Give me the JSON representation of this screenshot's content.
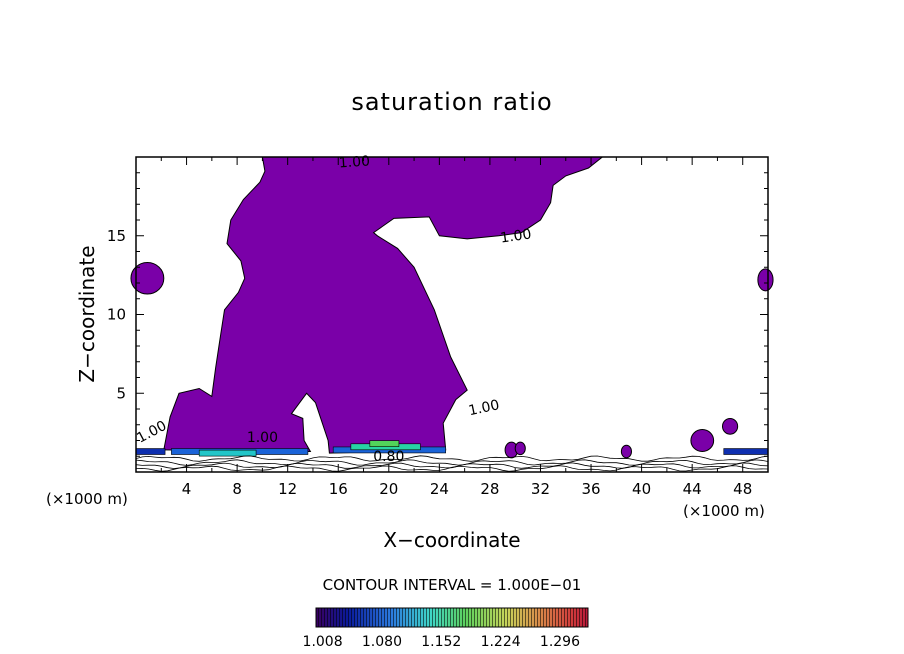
{
  "chart_data": {
    "type": "contour",
    "title": "saturation ratio",
    "xlabel": "X−coordinate",
    "ylabel": "Z−coordinate",
    "x_unit": "(×1000 m)",
    "xlim": [
      0,
      50
    ],
    "ylim": [
      0,
      20
    ],
    "x_ticks": [
      4,
      8,
      12,
      16,
      20,
      24,
      28,
      32,
      36,
      40,
      44,
      48
    ],
    "y_ticks": [
      5,
      10,
      15
    ],
    "fill_color": "#7a00a8",
    "contour_labels": [
      "1.00",
      "1.00",
      "1.00",
      "1.00",
      "1.00",
      "0.80"
    ],
    "contour_interval_text": "CONTOUR INTERVAL = 1.000E−01",
    "colorbar": {
      "ticks": [
        "1.008",
        "1.080",
        "1.152",
        "1.224",
        "1.296"
      ],
      "range": [
        1.0,
        1.33
      ]
    },
    "saturated_region_outline": [
      [
        10.0,
        20.0
      ],
      [
        10.2,
        19.1
      ],
      [
        9.8,
        18.4
      ],
      [
        8.5,
        17.3
      ],
      [
        7.5,
        16.0
      ],
      [
        7.2,
        14.5
      ],
      [
        8.3,
        13.4
      ],
      [
        8.6,
        12.3
      ],
      [
        8.1,
        11.4
      ],
      [
        7.0,
        10.3
      ],
      [
        6.6,
        8.2
      ],
      [
        6.3,
        6.6
      ],
      [
        6.0,
        4.8
      ],
      [
        5.0,
        5.3
      ],
      [
        3.4,
        5.0
      ],
      [
        2.7,
        3.5
      ],
      [
        2.2,
        1.4
      ],
      [
        13.8,
        1.3
      ],
      [
        13.3,
        2.0
      ],
      [
        13.2,
        3.4
      ],
      [
        12.3,
        3.7
      ],
      [
        13.5,
        5.0
      ],
      [
        14.2,
        4.4
      ],
      [
        15.2,
        2.0
      ],
      [
        15.3,
        1.2
      ],
      [
        24.5,
        1.4
      ],
      [
        24.3,
        3.1
      ],
      [
        25.3,
        4.6
      ],
      [
        26.2,
        5.2
      ],
      [
        24.9,
        7.3
      ],
      [
        23.6,
        10.3
      ],
      [
        22.0,
        13.0
      ],
      [
        20.7,
        14.2
      ],
      [
        19.1,
        15.0
      ],
      [
        18.8,
        15.2
      ],
      [
        20.4,
        16.1
      ],
      [
        23.2,
        16.2
      ],
      [
        24.0,
        15.0
      ],
      [
        26.2,
        14.8
      ],
      [
        28.7,
        15.0
      ],
      [
        30.5,
        15.2
      ],
      [
        32.0,
        16.0
      ],
      [
        32.8,
        17.1
      ],
      [
        33.0,
        18.2
      ],
      [
        34.0,
        18.8
      ],
      [
        35.8,
        19.3
      ],
      [
        36.9,
        20.0
      ]
    ],
    "small_blobs": [
      {
        "x": 0.9,
        "y": 12.3,
        "rx": 1.3,
        "ry": 1.0
      },
      {
        "x": 49.8,
        "y": 12.2,
        "rx": 0.6,
        "ry": 0.7
      },
      {
        "x": 44.8,
        "y": 2.0,
        "rx": 0.9,
        "ry": 0.7
      },
      {
        "x": 47.0,
        "y": 2.9,
        "rx": 0.6,
        "ry": 0.5
      },
      {
        "x": 29.7,
        "y": 1.4,
        "rx": 0.5,
        "ry": 0.5
      },
      {
        "x": 30.4,
        "y": 1.5,
        "rx": 0.4,
        "ry": 0.4
      },
      {
        "x": 38.8,
        "y": 1.3,
        "rx": 0.4,
        "ry": 0.4
      }
    ],
    "near_surface_band": [
      {
        "x0": 0.0,
        "x1": 2.3,
        "z": 1.3,
        "color": "#0e2fb0"
      },
      {
        "x0": 2.8,
        "x1": 13.6,
        "z": 1.3,
        "color": "#1a63d8"
      },
      {
        "x0": 5.0,
        "x1": 9.5,
        "z": 1.2,
        "color": "#22c6c8"
      },
      {
        "x0": 15.6,
        "x1": 24.5,
        "z": 1.4,
        "color": "#1a63d8"
      },
      {
        "x0": 17.0,
        "x1": 22.5,
        "z": 1.6,
        "color": "#28d4a4"
      },
      {
        "x0": 18.5,
        "x1": 20.8,
        "z": 1.8,
        "color": "#52d45a"
      },
      {
        "x0": 46.5,
        "x1": 50.0,
        "z": 1.3,
        "color": "#0e2fb0"
      }
    ]
  }
}
